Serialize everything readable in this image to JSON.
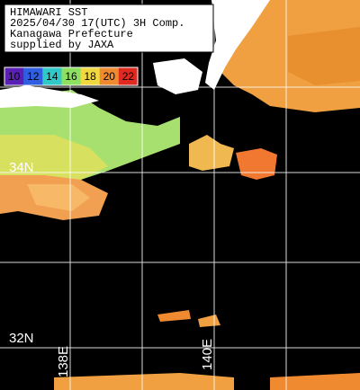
{
  "header": {
    "lines": [
      "HIMAWARI SST",
      "2025/04/30 17(UTC) 3H Comp.",
      "Kanagawa Prefecture",
      "supplied by JAXA"
    ]
  },
  "colorbar": [
    {
      "label": "10",
      "color": "#5a1fb4"
    },
    {
      "label": "12",
      "color": "#2f5fe0"
    },
    {
      "label": "14",
      "color": "#30c8c8"
    },
    {
      "label": "16",
      "color": "#8ee060"
    },
    {
      "label": "18",
      "color": "#f0d840"
    },
    {
      "label": "20",
      "color": "#f08a30"
    },
    {
      "label": "22",
      "color": "#e02a20"
    }
  ],
  "grid_labels": {
    "lat": [
      "34N",
      "32N"
    ],
    "lon": [
      "138E",
      "140E"
    ]
  }
}
